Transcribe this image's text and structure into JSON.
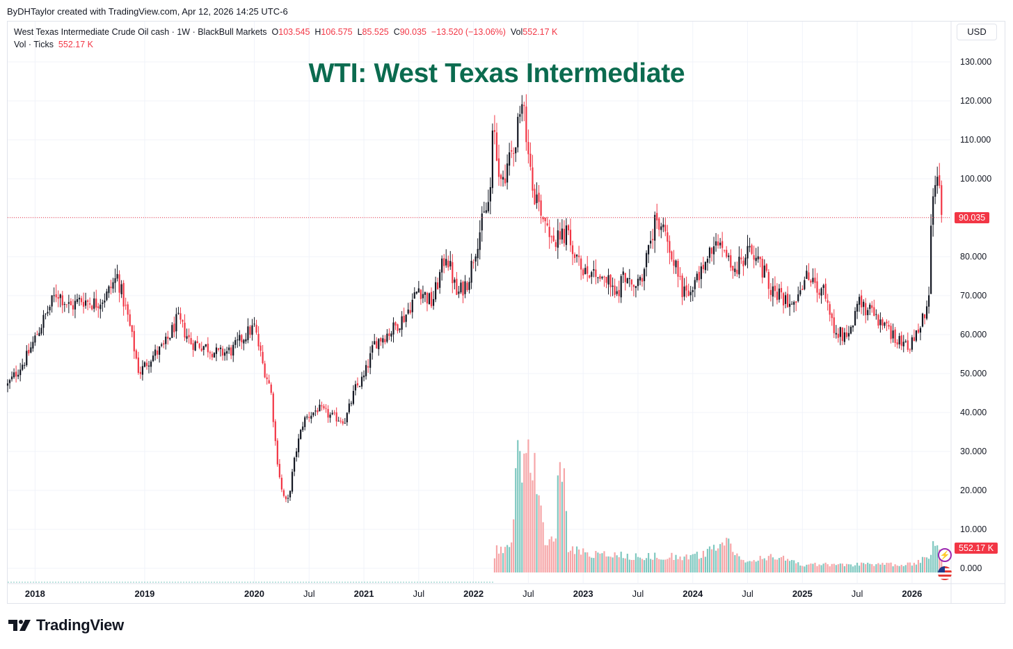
{
  "attribution": "ByDHTaylor created with TradingView.com, Apr 12, 2026 14:25 UTC-6",
  "legend": {
    "symbol": "West Texas Intermediate Crude Oil cash · 1W · BlackBull Markets",
    "open_label": "O",
    "open": "103.545",
    "high_label": "H",
    "high": "106.575",
    "low_label": "L",
    "low": "85.525",
    "close_label": "C",
    "close": "90.035",
    "change": "−13.520 (−13.06%)",
    "vol_label": "Vol",
    "vol": "552.17 K",
    "volume_series": "Vol · Ticks",
    "volume_value": "552.17 K"
  },
  "currency": "USD",
  "last_price_tag": "90.035",
  "volume_tag": "552.17 K",
  "branding": "TradingView",
  "colors": {
    "up": "#131722",
    "down": "#f23645",
    "vol_up": "#7fc8c0",
    "vol_down": "#f6a6a8",
    "title": "#0b6b4f"
  },
  "icons": [
    "tradingview-logo-icon",
    "lightning-bolt-icon",
    "us-flag-icon"
  ],
  "chart_data": {
    "type": "candlestick",
    "title": "WTI: West Texas Intermediate",
    "timeframe": "1W",
    "y_ticks": [
      "130.000",
      "120.000",
      "110.000",
      "100.000",
      "90.000",
      "80.000",
      "70.000",
      "60.000",
      "50.000",
      "40.000",
      "30.000",
      "20.000",
      "10.000",
      "0.000"
    ],
    "ylim": [
      -3.5,
      136
    ],
    "x_ticks": [
      {
        "label": "2018",
        "t": 2018.0,
        "bold": true
      },
      {
        "label": "2019",
        "t": 2019.0,
        "bold": true
      },
      {
        "label": "2020",
        "t": 2020.0,
        "bold": true
      },
      {
        "label": "Jul",
        "t": 2020.5,
        "bold": false
      },
      {
        "label": "2021",
        "t": 2021.0,
        "bold": true
      },
      {
        "label": "Jul",
        "t": 2021.5,
        "bold": false
      },
      {
        "label": "2022",
        "t": 2022.0,
        "bold": true
      },
      {
        "label": "Jul",
        "t": 2022.5,
        "bold": false
      },
      {
        "label": "2023",
        "t": 2023.0,
        "bold": true
      },
      {
        "label": "Jul",
        "t": 2023.5,
        "bold": false
      },
      {
        "label": "2024",
        "t": 2024.0,
        "bold": true
      },
      {
        "label": "Jul",
        "t": 2024.5,
        "bold": false
      },
      {
        "label": "2025",
        "t": 2025.0,
        "bold": true
      },
      {
        "label": "Jul",
        "t": 2025.5,
        "bold": false
      },
      {
        "label": "2026",
        "t": 2026.0,
        "bold": true
      }
    ],
    "xlim": [
      2017.75,
      2026.35
    ],
    "last_close": 90.035,
    "price_path": [
      [
        2017.75,
        47
      ],
      [
        2017.92,
        54
      ],
      [
        2018.08,
        64
      ],
      [
        2018.2,
        71
      ],
      [
        2018.32,
        67
      ],
      [
        2018.42,
        69
      ],
      [
        2018.55,
        68
      ],
      [
        2018.65,
        70
      ],
      [
        2018.75,
        75
      ],
      [
        2018.85,
        64
      ],
      [
        2018.95,
        50
      ],
      [
        2019.05,
        54
      ],
      [
        2019.18,
        57
      ],
      [
        2019.3,
        64
      ],
      [
        2019.42,
        58
      ],
      [
        2019.55,
        57
      ],
      [
        2019.67,
        55
      ],
      [
        2019.8,
        56
      ],
      [
        2019.92,
        60
      ],
      [
        2020.0,
        62
      ],
      [
        2020.08,
        52
      ],
      [
        2020.15,
        46
      ],
      [
        2020.2,
        30
      ],
      [
        2020.25,
        20
      ],
      [
        2020.3,
        16
      ],
      [
        2020.38,
        30
      ],
      [
        2020.45,
        38
      ],
      [
        2020.58,
        41
      ],
      [
        2020.7,
        39
      ],
      [
        2020.83,
        38
      ],
      [
        2020.92,
        46
      ],
      [
        2021.0,
        49
      ],
      [
        2021.1,
        58
      ],
      [
        2021.25,
        61
      ],
      [
        2021.38,
        65
      ],
      [
        2021.5,
        72
      ],
      [
        2021.62,
        68
      ],
      [
        2021.75,
        81
      ],
      [
        2021.85,
        70
      ],
      [
        2021.95,
        74
      ],
      [
        2022.05,
        86
      ],
      [
        2022.15,
        95
      ],
      [
        2022.18,
        114
      ],
      [
        2022.25,
        98
      ],
      [
        2022.35,
        108
      ],
      [
        2022.45,
        118
      ],
      [
        2022.55,
        97
      ],
      [
        2022.65,
        90
      ],
      [
        2022.75,
        84
      ],
      [
        2022.85,
        86
      ],
      [
        2022.95,
        78
      ],
      [
        2023.02,
        77
      ],
      [
        2023.12,
        76
      ],
      [
        2023.22,
        74
      ],
      [
        2023.3,
        70
      ],
      [
        2023.38,
        76
      ],
      [
        2023.45,
        71
      ],
      [
        2023.55,
        76
      ],
      [
        2023.65,
        88
      ],
      [
        2023.72,
        88
      ],
      [
        2023.8,
        82
      ],
      [
        2023.9,
        72
      ],
      [
        2023.98,
        70
      ],
      [
        2024.08,
        77
      ],
      [
        2024.18,
        82
      ],
      [
        2024.28,
        83
      ],
      [
        2024.38,
        76
      ],
      [
        2024.48,
        80
      ],
      [
        2024.55,
        82
      ],
      [
        2024.65,
        76
      ],
      [
        2024.75,
        70
      ],
      [
        2024.85,
        69
      ],
      [
        2024.95,
        70
      ],
      [
        2025.05,
        75
      ],
      [
        2025.12,
        72
      ],
      [
        2025.22,
        70
      ],
      [
        2025.3,
        61
      ],
      [
        2025.38,
        60
      ],
      [
        2025.45,
        62
      ],
      [
        2025.5,
        68
      ],
      [
        2025.58,
        67
      ],
      [
        2025.68,
        64
      ],
      [
        2025.78,
        61
      ],
      [
        2025.88,
        59
      ],
      [
        2025.98,
        57
      ],
      [
        2026.05,
        60
      ],
      [
        2026.12,
        66
      ],
      [
        2026.16,
        70
      ],
      [
        2026.18,
        95
      ],
      [
        2026.22,
        98
      ],
      [
        2026.25,
        100
      ],
      [
        2026.27,
        90
      ]
    ],
    "volume_path": [
      [
        2017.75,
        0
      ],
      [
        2022.18,
        0
      ],
      [
        2022.2,
        6
      ],
      [
        2022.3,
        6
      ],
      [
        2022.35,
        7
      ],
      [
        2022.4,
        28
      ],
      [
        2022.5,
        29
      ],
      [
        2022.58,
        24
      ],
      [
        2022.65,
        7
      ],
      [
        2022.75,
        8
      ],
      [
        2022.78,
        27
      ],
      [
        2022.82,
        27
      ],
      [
        2022.86,
        6
      ],
      [
        2023.0,
        5
      ],
      [
        2023.5,
        4
      ],
      [
        2024.0,
        4
      ],
      [
        2024.25,
        6
      ],
      [
        2024.3,
        8
      ],
      [
        2024.38,
        5
      ],
      [
        2024.5,
        3
      ],
      [
        2024.75,
        4
      ],
      [
        2025.0,
        2
      ],
      [
        2025.5,
        2
      ],
      [
        2026.0,
        2
      ],
      [
        2026.15,
        4
      ],
      [
        2026.2,
        7
      ],
      [
        2026.27,
        5
      ]
    ]
  }
}
